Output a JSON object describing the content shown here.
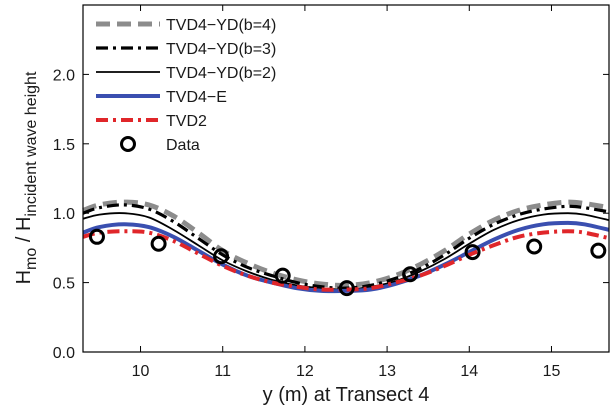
{
  "chart_data": {
    "type": "line",
    "xlabel": "y (m) at Transect 4",
    "ylabel": {
      "main": "H",
      "sub1": "mo",
      "sep": " / H",
      "sub2": "incident wave height"
    },
    "xlim": [
      9.3,
      15.7
    ],
    "ylim": [
      0,
      2.5
    ],
    "x_ticks": [
      "10",
      "11",
      "12",
      "13",
      "14",
      "15"
    ],
    "x_tick_values": [
      10,
      11,
      12,
      13,
      14,
      15
    ],
    "y_ticks": [
      "0.0",
      "0.5",
      "1.0",
      "1.5",
      "2.0"
    ],
    "y_tick_values": [
      0,
      0.5,
      1.0,
      1.5,
      2.0
    ],
    "grid": false,
    "legend_position": "top-left",
    "series": [
      {
        "name": "TVD4−YD(b=4)",
        "style": "dashed",
        "color": "#8c8c8c",
        "x": [
          9.3,
          9.5,
          9.8,
          10.1,
          10.4,
          10.7,
          11.0,
          11.3,
          11.6,
          11.9,
          12.2,
          12.5,
          12.8,
          13.1,
          13.4,
          13.7,
          14.0,
          14.3,
          14.6,
          14.9,
          15.2,
          15.4,
          15.7
        ],
        "y": [
          1.02,
          1.06,
          1.08,
          1.06,
          0.98,
          0.86,
          0.73,
          0.64,
          0.57,
          0.52,
          0.49,
          0.48,
          0.5,
          0.55,
          0.63,
          0.73,
          0.85,
          0.95,
          1.02,
          1.06,
          1.08,
          1.07,
          1.04
        ]
      },
      {
        "name": "TVD4−YD(b=3)",
        "style": "dashdot",
        "color": "#000000",
        "x": [
          9.3,
          9.5,
          9.8,
          10.1,
          10.4,
          10.7,
          11.0,
          11.3,
          11.6,
          11.9,
          12.2,
          12.5,
          12.8,
          13.1,
          13.4,
          13.7,
          14.0,
          14.3,
          14.6,
          14.9,
          15.2,
          15.4,
          15.7
        ],
        "y": [
          1.0,
          1.04,
          1.06,
          1.03,
          0.94,
          0.82,
          0.7,
          0.61,
          0.55,
          0.5,
          0.47,
          0.46,
          0.48,
          0.53,
          0.6,
          0.7,
          0.82,
          0.92,
          0.99,
          1.03,
          1.05,
          1.04,
          1.01
        ]
      },
      {
        "name": "TVD4−YD(b=2)",
        "style": "solid",
        "color": "#000000",
        "x": [
          9.3,
          9.5,
          9.8,
          10.1,
          10.4,
          10.7,
          11.0,
          11.3,
          11.6,
          11.9,
          12.2,
          12.5,
          12.8,
          13.1,
          13.4,
          13.7,
          14.0,
          14.3,
          14.6,
          14.9,
          15.2,
          15.4,
          15.7
        ],
        "y": [
          0.96,
          0.99,
          1.0,
          0.97,
          0.88,
          0.77,
          0.66,
          0.58,
          0.52,
          0.48,
          0.46,
          0.45,
          0.47,
          0.51,
          0.58,
          0.67,
          0.78,
          0.88,
          0.95,
          0.99,
          1.0,
          0.99,
          0.95
        ]
      },
      {
        "name": "TVD4−E",
        "style": "solid-thick",
        "color": "#3a4fb0",
        "x": [
          9.3,
          9.5,
          9.8,
          10.1,
          10.4,
          10.7,
          11.0,
          11.3,
          11.6,
          11.9,
          12.2,
          12.5,
          12.8,
          13.1,
          13.4,
          13.7,
          14.0,
          14.3,
          14.6,
          14.9,
          15.2,
          15.4,
          15.7
        ],
        "y": [
          0.86,
          0.9,
          0.92,
          0.9,
          0.83,
          0.73,
          0.63,
          0.55,
          0.5,
          0.46,
          0.44,
          0.44,
          0.45,
          0.49,
          0.55,
          0.63,
          0.72,
          0.81,
          0.88,
          0.92,
          0.93,
          0.92,
          0.88
        ]
      },
      {
        "name": "TVD2",
        "style": "dashdot-thick",
        "color": "#e0262a",
        "x": [
          9.3,
          9.5,
          9.8,
          10.1,
          10.4,
          10.7,
          11.0,
          11.3,
          11.6,
          11.9,
          12.2,
          12.5,
          12.8,
          13.1,
          13.4,
          13.7,
          14.0,
          14.3,
          14.6,
          14.9,
          15.2,
          15.4,
          15.7
        ],
        "y": [
          0.83,
          0.86,
          0.87,
          0.86,
          0.8,
          0.71,
          0.62,
          0.55,
          0.5,
          0.47,
          0.45,
          0.45,
          0.46,
          0.5,
          0.55,
          0.62,
          0.7,
          0.77,
          0.83,
          0.86,
          0.87,
          0.86,
          0.82
        ]
      }
    ],
    "points": {
      "name": "Data",
      "color": "#000000",
      "x": [
        9.47,
        10.22,
        10.98,
        11.73,
        12.51,
        13.28,
        14.04,
        14.79,
        15.57
      ],
      "y": [
        0.83,
        0.78,
        0.69,
        0.55,
        0.46,
        0.56,
        0.72,
        0.76,
        0.73
      ]
    }
  }
}
